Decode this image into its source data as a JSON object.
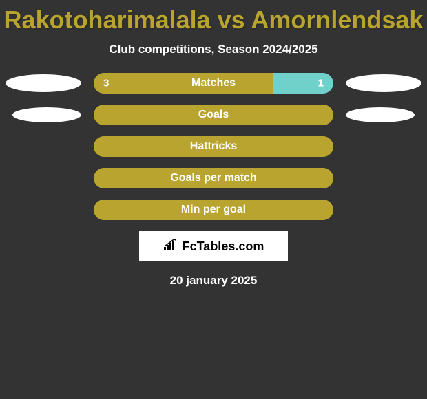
{
  "title": "Rakotoharimalala vs Amornlendsak",
  "subtitle": "Club competitions, Season 2024/2025",
  "footer_date": "20 january 2025",
  "logo_text": "FcTables.com",
  "colors": {
    "background": "#333333",
    "accent": "#b8a42e",
    "bar_right_segment": "#6fd1c9",
    "ellipse": "#ffffff",
    "text": "#ffffff",
    "title": "#b8a42e"
  },
  "rows": [
    {
      "label": "Matches",
      "left_value": "3",
      "right_value": "1",
      "left_pct": 75,
      "left_color": "#b8a42e",
      "right_color": "#6fd1c9",
      "show_ellipses": true,
      "ellipse_size": "large"
    },
    {
      "label": "Goals",
      "left_value": "",
      "right_value": "",
      "left_pct": 100,
      "left_color": "#b8a42e",
      "right_color": "#b8a42e",
      "show_ellipses": true,
      "ellipse_size": "small"
    },
    {
      "label": "Hattricks",
      "left_value": "",
      "right_value": "",
      "left_pct": 100,
      "left_color": "#b8a42e",
      "right_color": "#b8a42e",
      "show_ellipses": false
    },
    {
      "label": "Goals per match",
      "left_value": "",
      "right_value": "",
      "left_pct": 100,
      "left_color": "#b8a42e",
      "right_color": "#b8a42e",
      "show_ellipses": false
    },
    {
      "label": "Min per goal",
      "left_value": "",
      "right_value": "",
      "left_pct": 100,
      "left_color": "#b8a42e",
      "right_color": "#b8a42e",
      "show_ellipses": false
    }
  ]
}
